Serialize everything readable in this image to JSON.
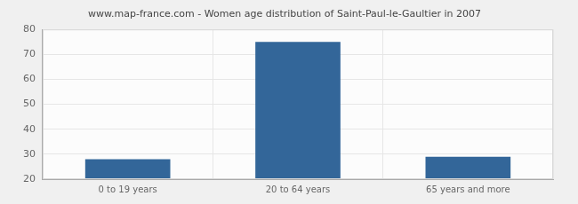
{
  "chart_data": {
    "type": "bar",
    "title": "www.map-france.com - Women age distribution of Saint-Paul-le-Gaultier in 2007",
    "categories": [
      "0 to 19 years",
      "20 to 64 years",
      "65 years and more"
    ],
    "values": [
      28,
      75,
      29
    ],
    "color": "#336699",
    "ylim": [
      20,
      80
    ],
    "yticks": [
      20,
      30,
      40,
      50,
      60,
      70,
      80
    ],
    "grid": true
  }
}
